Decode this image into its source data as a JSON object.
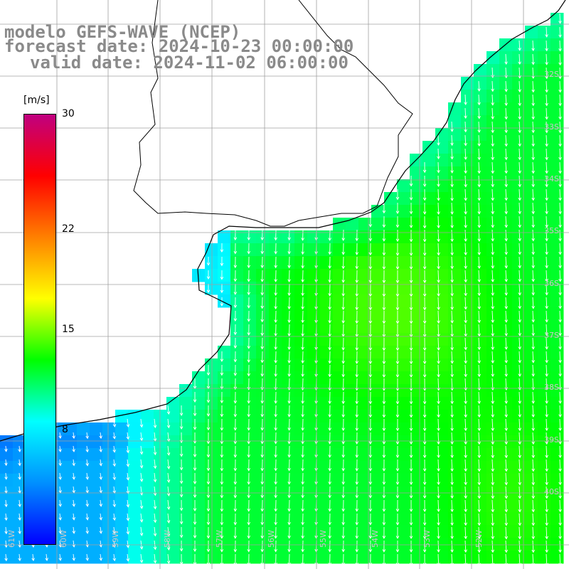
{
  "title": {
    "line1": "modelo GEFS-WAVE (NCEP)",
    "line2": "forecast date: 2024-10-23 00:00:00",
    "line3": "valid date: 2024-11-02 06:00:00"
  },
  "colorbar": {
    "unit": "[m/s]",
    "min": 0,
    "max": 30,
    "ticks": [
      "30",
      "22",
      "15",
      "8"
    ],
    "tick_values": [
      30,
      22,
      15,
      8
    ],
    "colors": [
      "#0000ff",
      "#0090ff",
      "#00ffff",
      "#00ff00",
      "#ffff00",
      "#ff8000",
      "#ff0000",
      "#c00080"
    ]
  },
  "map": {
    "variable": "wind speed and direction",
    "land_color": "#ffffff",
    "coastline_color": "#000000",
    "grid_color": "#a0a0a0",
    "arrow_color": "#ffffff",
    "lat_labels": [
      "32S",
      "33S",
      "34S",
      "35S",
      "36S",
      "37S",
      "38S",
      "39S",
      "40S"
    ],
    "lon_labels": [
      "61W",
      "60W",
      "59W",
      "58W",
      "57W",
      "56W",
      "55W",
      "54W",
      "53W",
      "52W"
    ]
  }
}
